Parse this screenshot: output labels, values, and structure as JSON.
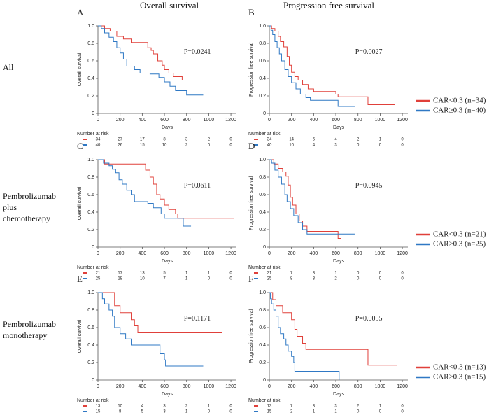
{
  "column_titles": [
    "Overall survival",
    "Progression free survival"
  ],
  "row_labels": [
    "All",
    "Pembrolizumab plus chemotherapy",
    "Pembrolizumab monotherapy"
  ],
  "chart_data": [
    {
      "type": "line",
      "step": true,
      "label": "A",
      "annotation": "P=0.0241",
      "annotation_color": "#e0403a",
      "x_label": "Days",
      "y_label": "Overall survival",
      "xlim": [
        0,
        1250
      ],
      "ylim": [
        0,
        1
      ],
      "xticks": [
        0,
        200,
        400,
        600,
        800,
        1000,
        1200
      ],
      "yticks": [
        0,
        0.2,
        0.4,
        0.6,
        0.8,
        {
          "value": 1,
          "label": "1.0"
        }
      ],
      "series": [
        {
          "color": "#e0403a",
          "x": [
            0,
            60,
            110,
            170,
            230,
            300,
            450,
            480,
            500,
            540,
            580,
            600,
            640,
            680,
            760,
            1240
          ],
          "values": [
            1,
            0.97,
            0.94,
            0.88,
            0.85,
            0.81,
            0.75,
            0.72,
            0.68,
            0.6,
            0.55,
            0.5,
            0.46,
            0.42,
            0.38,
            0.38
          ]
        },
        {
          "color": "#2f78c4",
          "x": [
            0,
            30,
            60,
            100,
            140,
            170,
            200,
            230,
            260,
            330,
            380,
            470,
            550,
            600,
            650,
            700,
            800,
            950
          ],
          "values": [
            1,
            0.97,
            0.92,
            0.87,
            0.82,
            0.75,
            0.69,
            0.62,
            0.54,
            0.5,
            0.46,
            0.45,
            0.41,
            0.36,
            0.31,
            0.26,
            0.21,
            0.21
          ]
        }
      ],
      "risk_table": {
        "title": "Number at risk",
        "rows": [
          [
            34,
            27,
            17,
            8,
            3,
            2,
            0
          ],
          [
            40,
            26,
            15,
            10,
            2,
            0,
            0
          ]
        ]
      }
    },
    {
      "type": "line",
      "step": true,
      "label": "B",
      "annotation": "P=0.0027",
      "annotation_color": "#e0403a",
      "x_label": "Days",
      "y_label": "Progression free survival",
      "xlim": [
        0,
        1250
      ],
      "ylim": [
        0,
        1
      ],
      "xticks": [
        0,
        200,
        400,
        600,
        800,
        1000,
        1200
      ],
      "yticks": [
        0,
        0.2,
        0.4,
        0.6,
        0.8,
        {
          "value": 1,
          "label": "1.0"
        }
      ],
      "series": [
        {
          "name": "CAR<0.3 (n=34)",
          "color": "#e0403a",
          "x": [
            0,
            20,
            50,
            80,
            100,
            130,
            160,
            180,
            200,
            230,
            260,
            300,
            350,
            400,
            600,
            620,
            880,
            890,
            1130
          ],
          "values": [
            1,
            0.97,
            0.94,
            0.88,
            0.82,
            0.76,
            0.65,
            0.55,
            0.47,
            0.42,
            0.38,
            0.33,
            0.28,
            0.25,
            0.22,
            0.19,
            0.19,
            0.1,
            0.1
          ]
        },
        {
          "name": "CAR≥0.3 (n=40)",
          "color": "#2f78c4",
          "x": [
            0,
            15,
            30,
            50,
            70,
            90,
            110,
            140,
            170,
            200,
            240,
            280,
            330,
            370,
            600,
            620,
            770
          ],
          "values": [
            1,
            0.95,
            0.9,
            0.82,
            0.75,
            0.68,
            0.6,
            0.5,
            0.42,
            0.35,
            0.28,
            0.22,
            0.18,
            0.15,
            0.15,
            0.08,
            0.08
          ]
        }
      ],
      "risk_table": {
        "title": "Number at risk",
        "rows": [
          [
            34,
            14,
            6,
            4,
            2,
            1,
            0
          ],
          [
            40,
            10,
            4,
            3,
            0,
            0,
            0
          ]
        ]
      }
    },
    {
      "type": "line",
      "step": true,
      "label": "C",
      "annotation": "P=0.0611",
      "annotation_color": "#222222",
      "x_label": "Days",
      "y_label": "Overall survival",
      "xlim": [
        0,
        1250
      ],
      "ylim": [
        0,
        1
      ],
      "xticks": [
        0,
        200,
        400,
        600,
        800,
        1000,
        1200
      ],
      "yticks": [
        0,
        0.2,
        0.4,
        0.6,
        0.8,
        {
          "value": 1,
          "label": "1.0"
        }
      ],
      "series": [
        {
          "color": "#e0403a",
          "x": [
            0,
            60,
            380,
            430,
            470,
            500,
            530,
            560,
            600,
            640,
            700,
            720,
            1230
          ],
          "values": [
            1,
            0.95,
            0.95,
            0.88,
            0.8,
            0.72,
            0.6,
            0.55,
            0.48,
            0.43,
            0.38,
            0.33,
            0.33
          ]
        },
        {
          "color": "#2f78c4",
          "x": [
            0,
            50,
            100,
            130,
            160,
            190,
            220,
            260,
            300,
            330,
            450,
            500,
            570,
            600,
            760,
            770,
            840
          ],
          "values": [
            1,
            0.96,
            0.93,
            0.89,
            0.85,
            0.77,
            0.72,
            0.65,
            0.6,
            0.52,
            0.5,
            0.45,
            0.38,
            0.33,
            0.33,
            0.24,
            0.24
          ]
        }
      ],
      "risk_table": {
        "title": "Number at risk",
        "rows": [
          [
            21,
            17,
            13,
            5,
            1,
            1,
            0
          ],
          [
            25,
            18,
            10,
            7,
            1,
            0,
            0
          ]
        ]
      }
    },
    {
      "type": "line",
      "step": true,
      "label": "D",
      "annotation": "P=0.0945",
      "annotation_color": "#222222",
      "x_label": "Days",
      "y_label": "Progression free survival",
      "xlim": [
        0,
        1250
      ],
      "ylim": [
        0,
        1
      ],
      "xticks": [
        0,
        200,
        400,
        600,
        800,
        1000,
        1200
      ],
      "yticks": [
        0,
        0.2,
        0.4,
        0.6,
        0.8,
        {
          "value": 1,
          "label": "1.0"
        }
      ],
      "series": [
        {
          "name": "CAR<0.3 (n=21)",
          "color": "#e0403a",
          "x": [
            0,
            40,
            80,
            120,
            150,
            170,
            190,
            210,
            240,
            270,
            300,
            340,
            600,
            620,
            650
          ],
          "values": [
            1,
            0.95,
            0.9,
            0.86,
            0.81,
            0.71,
            0.57,
            0.48,
            0.38,
            0.3,
            0.24,
            0.18,
            0.18,
            0.1,
            0.1
          ]
        },
        {
          "name": "CAR≥0.3 (n=25)",
          "color": "#2f78c4",
          "x": [
            0,
            20,
            50,
            80,
            110,
            140,
            160,
            190,
            220,
            260,
            300,
            340,
            770
          ],
          "values": [
            1,
            0.96,
            0.88,
            0.8,
            0.72,
            0.6,
            0.52,
            0.44,
            0.36,
            0.28,
            0.2,
            0.15,
            0.15
          ]
        }
      ],
      "risk_table": {
        "title": "Number at risk",
        "rows": [
          [
            21,
            7,
            3,
            1,
            0,
            0,
            0
          ],
          [
            25,
            8,
            3,
            2,
            0,
            0,
            0
          ]
        ]
      }
    },
    {
      "type": "line",
      "step": true,
      "label": "E",
      "annotation": "P=0.1171",
      "annotation_color": "#222222",
      "x_label": "Days",
      "y_label": "Overall survival",
      "xlim": [
        0,
        1250
      ],
      "ylim": [
        0,
        1
      ],
      "xticks": [
        0,
        200,
        400,
        600,
        800,
        1000,
        1200
      ],
      "yticks": [
        0,
        0.2,
        0.4,
        0.6,
        0.8,
        {
          "value": 1,
          "label": "1.0"
        }
      ],
      "series": [
        {
          "color": "#e0403a",
          "x": [
            0,
            130,
            150,
            200,
            300,
            330,
            360,
            1120
          ],
          "values": [
            1,
            1,
            0.85,
            0.77,
            0.69,
            0.62,
            0.54,
            0.54
          ]
        },
        {
          "color": "#2f78c4",
          "x": [
            0,
            40,
            60,
            100,
            130,
            150,
            200,
            250,
            300,
            500,
            560,
            600,
            610,
            950
          ],
          "values": [
            1,
            0.93,
            0.87,
            0.8,
            0.73,
            0.6,
            0.53,
            0.47,
            0.4,
            0.4,
            0.3,
            0.23,
            0.16,
            0.16
          ]
        }
      ],
      "risk_table": {
        "title": "Number at risk",
        "rows": [
          [
            13,
            10,
            4,
            3,
            2,
            1,
            0
          ],
          [
            15,
            8,
            5,
            3,
            1,
            0,
            0
          ]
        ]
      }
    },
    {
      "type": "line",
      "step": true,
      "label": "F",
      "annotation": "P=0.0055",
      "annotation_color": "#e0403a",
      "x_label": "Days",
      "y_label": "Progression free survival",
      "xlim": [
        0,
        1250
      ],
      "ylim": [
        0,
        1
      ],
      "xticks": [
        0,
        200,
        400,
        600,
        800,
        1000,
        1200
      ],
      "yticks": [
        0,
        0.2,
        0.4,
        0.6,
        0.8,
        {
          "value": 1,
          "label": "1.0"
        }
      ],
      "series": [
        {
          "name": "CAR<0.3 (n=13)",
          "color": "#e0403a",
          "x": [
            0,
            30,
            60,
            120,
            200,
            230,
            250,
            300,
            330,
            880,
            890,
            1150
          ],
          "values": [
            1,
            0.92,
            0.85,
            0.77,
            0.69,
            0.58,
            0.5,
            0.42,
            0.35,
            0.35,
            0.17,
            0.17
          ]
        },
        {
          "name": "CAR≥0.3 (n=15)",
          "color": "#2f78c4",
          "x": [
            0,
            10,
            20,
            40,
            60,
            80,
            100,
            130,
            150,
            170,
            200,
            220,
            230,
            620,
            630
          ],
          "values": [
            1,
            0.93,
            0.87,
            0.8,
            0.73,
            0.6,
            0.53,
            0.47,
            0.4,
            0.33,
            0.27,
            0.2,
            0.1,
            0.1,
            0
          ]
        }
      ],
      "risk_table": {
        "title": "Number at risk",
        "rows": [
          [
            13,
            7,
            3,
            3,
            2,
            1,
            0
          ],
          [
            15,
            2,
            1,
            1,
            0,
            0,
            0
          ]
        ]
      }
    }
  ]
}
